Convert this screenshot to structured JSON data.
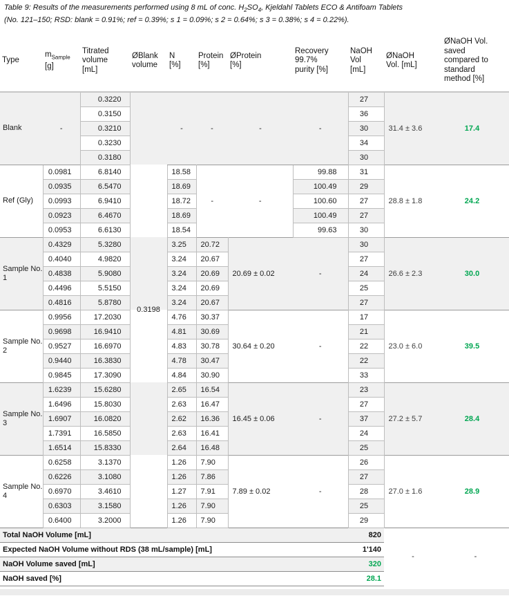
{
  "caption": {
    "l1a": "Table 9: Results of the measurements performed using 8 mL of conc. H",
    "l1_sub1": "2",
    "l1b": "SO",
    "l1_sub2": "4",
    "l1c": ", Kjeldahl Tablets ECO & Antifoam Tablets",
    "line2": "(No. 121–150; RSD: blank = 0.91%; ref = 0.39%; s 1 = 0.09%; s 2 = 0.64%; s 3 = 0.38%; s 4 = 0.22%)."
  },
  "header": {
    "type": "Type",
    "m_main": "m",
    "m_sub": "Sample",
    "m_unit": "[g]",
    "titrated": "Titrated\nvolume\n[mL]",
    "blank_vol": "ØBlank\nvolume",
    "n": "N\n[%]",
    "protein": "Protein\n[%]",
    "avg_protein": "ØProtein\n[%]",
    "recovery": "Recovery\n99.7%\npurity [%]",
    "naoh": "NaOH\nVol\n[mL]",
    "avg_naoh": "ØNaOH\nVol. [mL]",
    "saved": "ØNaOH Vol.\nsaved\ncompared to\nstandard\nmethod [%]"
  },
  "blank_volume_value": "0.3198",
  "sections": [
    {
      "type": "Blank",
      "m": "-",
      "titrated": [
        "0.3220",
        "0.3150",
        "0.3210",
        "0.3230",
        "0.3180"
      ],
      "n": "-",
      "protein": "-",
      "avg_protein": "-",
      "recovery": "-",
      "naoh": [
        "27",
        "36",
        "30",
        "34",
        "30"
      ],
      "avg_naoh": "31.4 ± 3.6",
      "saved": "17.4"
    },
    {
      "type": "Ref (Gly)",
      "m": [
        "0.0981",
        "0.0935",
        "0.0993",
        "0.0923",
        "0.0953"
      ],
      "titrated": [
        "6.8140",
        "6.5470",
        "6.9410",
        "6.4670",
        "6.6130"
      ],
      "n": [
        "18.58",
        "18.69",
        "18.72",
        "18.69",
        "18.54"
      ],
      "protein": "-",
      "avg_protein": "-",
      "recovery": [
        "99.88",
        "100.49",
        "100.60",
        "100.49",
        "99.63"
      ],
      "naoh": [
        "31",
        "29",
        "27",
        "27",
        "30"
      ],
      "avg_naoh": "28.8 ± 1.8",
      "saved": "24.2"
    },
    {
      "type": "Sample No. 1",
      "m": [
        "0.4329",
        "0.4040",
        "0.4838",
        "0.4496",
        "0.4816"
      ],
      "titrated": [
        "5.3280",
        "4.9820",
        "5.9080",
        "5.5150",
        "5.8780"
      ],
      "n": [
        "3.25",
        "3.24",
        "3.24",
        "3.24",
        "3.24"
      ],
      "protein": [
        "20.72",
        "20.67",
        "20.69",
        "20.69",
        "20.67"
      ],
      "avg_protein": "20.69 ± 0.02",
      "recovery": "-",
      "naoh": [
        "30",
        "27",
        "24",
        "25",
        "27"
      ],
      "avg_naoh": "26.6 ± 2.3",
      "saved": "30.0"
    },
    {
      "type": "Sample No. 2",
      "m": [
        "0.9956",
        "0.9698",
        "0.9527",
        "0.9440",
        "0.9845"
      ],
      "titrated": [
        "17.2030",
        "16.9410",
        "16.6970",
        "16.3830",
        "17.3090"
      ],
      "n": [
        "4.76",
        "4.81",
        "4.83",
        "4.78",
        "4.84"
      ],
      "protein": [
        "30.37",
        "30.69",
        "30.78",
        "30.47",
        "30.90"
      ],
      "avg_protein": "30.64 ± 0.20",
      "recovery": "-",
      "naoh": [
        "17",
        "21",
        "22",
        "22",
        "33"
      ],
      "avg_naoh": "23.0 ± 6.0",
      "saved": "39.5"
    },
    {
      "type": "Sample No. 3",
      "m": [
        "1.6239",
        "1.6496",
        "1.6907",
        "1.7391",
        "1.6514"
      ],
      "titrated": [
        "15.6280",
        "15.8030",
        "16.0820",
        "16.5850",
        "15.8330"
      ],
      "n": [
        "2.65",
        "2.63",
        "2.62",
        "2.63",
        "2.64"
      ],
      "protein": [
        "16.54",
        "16.47",
        "16.36",
        "16.41",
        "16.48"
      ],
      "avg_protein": "16.45 ± 0.06",
      "recovery": "-",
      "naoh": [
        "23",
        "27",
        "37",
        "24",
        "25"
      ],
      "avg_naoh": "27.2 ± 5.7",
      "saved": "28.4"
    },
    {
      "type": "Sample No. 4",
      "m": [
        "0.6258",
        "0.6226",
        "0.6970",
        "0.6303",
        "0.6400"
      ],
      "titrated": [
        "3.1370",
        "3.1080",
        "3.4610",
        "3.1580",
        "3.2000"
      ],
      "n": [
        "1.26",
        "1.26",
        "1.27",
        "1.26",
        "1.26"
      ],
      "protein": [
        "7.90",
        "7.86",
        "7.91",
        "7.90",
        "7.90"
      ],
      "avg_protein": "7.89 ± 0.02",
      "recovery": "-",
      "naoh": [
        "26",
        "27",
        "28",
        "25",
        "29"
      ],
      "avg_naoh": "27.0 ± 1.6",
      "saved": "28.9"
    }
  ],
  "footer": {
    "rows": [
      {
        "label": "Total NaOH Volume [mL]",
        "value": "820",
        "green": false
      },
      {
        "label": "Expected NaOH Volume without RDS (38 mL/sample) [mL]",
        "value": "1'140",
        "green": false
      },
      {
        "label": "NaOH Volume saved [mL]",
        "value": "320",
        "green": true
      },
      {
        "label": "NaOH saved [%]",
        "value": "28.1",
        "green": true
      }
    ],
    "avg_naoh_dash": "-",
    "saved_dash": "-"
  },
  "colors": {
    "accent_green": "#00A651",
    "row_shade": "#F0F0F0"
  }
}
